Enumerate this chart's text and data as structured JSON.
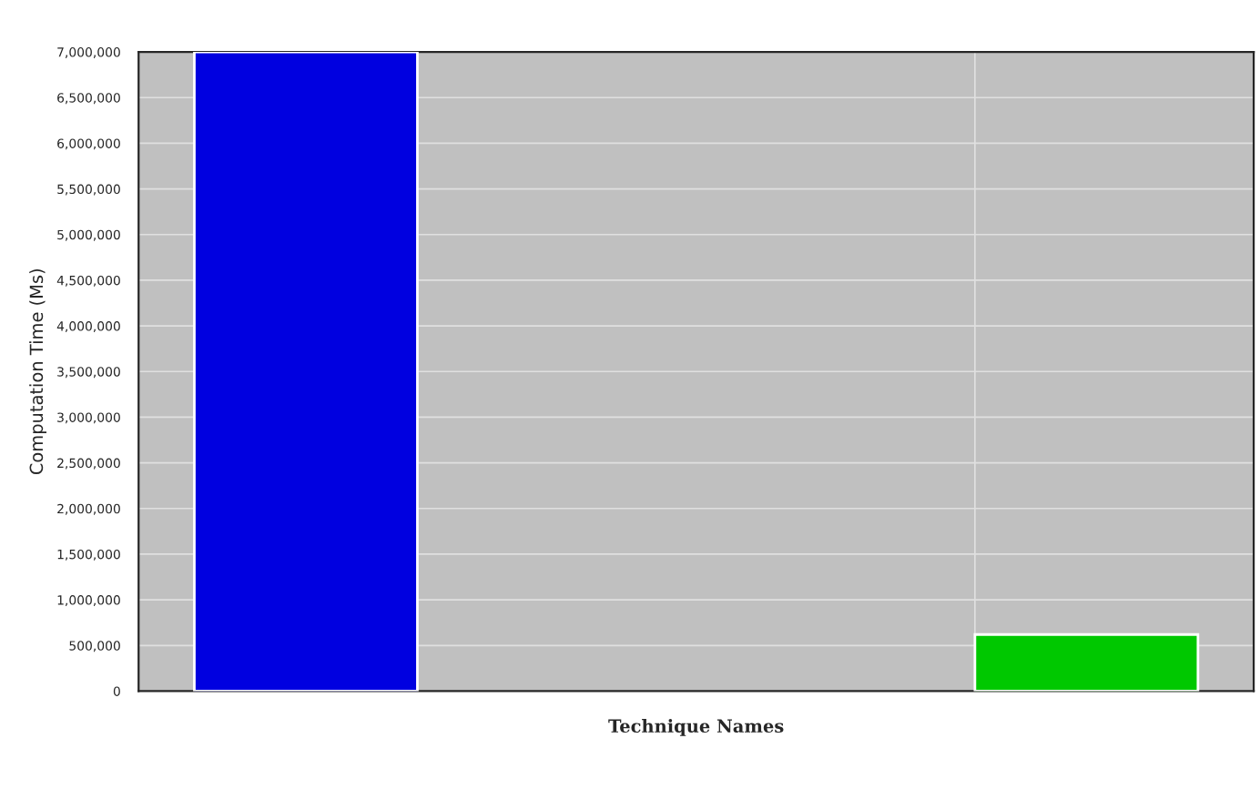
{
  "chart_data": {
    "type": "bar",
    "ylabel": "Computation Time (Ms)",
    "xlabel": "Technique Names",
    "categories": [
      null,
      null
    ],
    "series": [
      {
        "color": "#0000e0",
        "values": [
          7000000,
          null
        ]
      },
      {
        "color": "#00c800",
        "values": [
          null,
          620000
        ]
      }
    ],
    "ylim": [
      0,
      7000000
    ],
    "yticks": [
      0,
      {
        "value": 500000,
        "label": "500,000"
      },
      {
        "value": 1000000,
        "label": "1,000,000"
      },
      {
        "value": 1500000,
        "label": "1,500,000"
      },
      {
        "value": 2000000,
        "label": "2,000,000"
      },
      {
        "value": 2500000,
        "label": "2,500,000"
      },
      {
        "value": 3000000,
        "label": "3,000,000"
      },
      {
        "value": 3500000,
        "label": "3,500,000"
      },
      {
        "value": 4000000,
        "label": "4,000,000"
      },
      {
        "value": 4500000,
        "label": "4,500,000"
      },
      {
        "value": 5000000,
        "label": "5,000,000"
      },
      {
        "value": 5500000,
        "label": "5,500,000"
      },
      {
        "value": 6000000,
        "label": "6,000,000"
      },
      {
        "value": 6500000,
        "label": "6,500,000"
      },
      {
        "value": 7000000,
        "label": "7,000,000"
      }
    ],
    "grid": true
  }
}
